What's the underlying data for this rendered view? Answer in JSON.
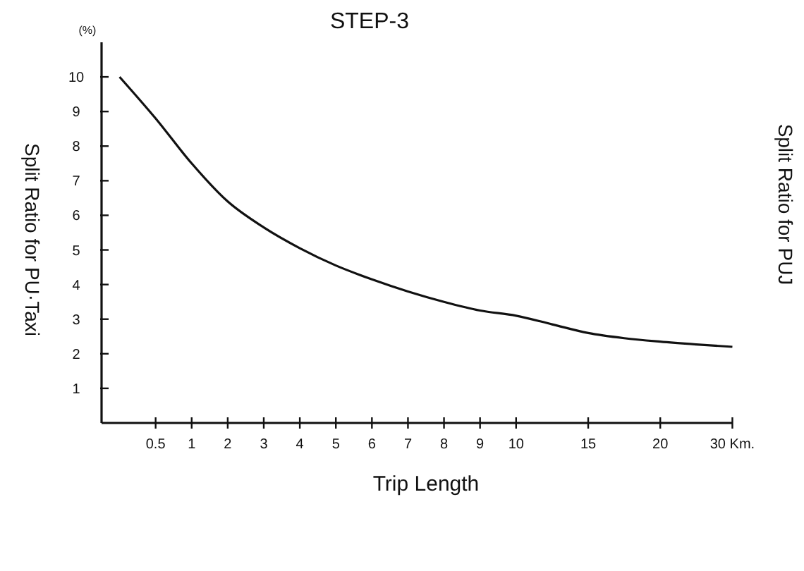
{
  "chart_data": {
    "type": "line",
    "title": "STEP-3",
    "xlabel": "Trip Length",
    "ylabel": "Split Ratio for PU·Taxi",
    "y2label": "Split Ratio for PUJ",
    "annotations": [
      "(%)"
    ],
    "categories": [
      null,
      "0.5",
      "1",
      "2",
      "3",
      "4",
      "5",
      "6",
      "7",
      "8",
      "9",
      "10",
      null,
      "15",
      null,
      "20",
      null,
      "30 Km."
    ],
    "series": [
      {
        "color": "#111111",
        "values": [
          10,
          8.8,
          7.5,
          6.4,
          5.65,
          5.05,
          4.55,
          4.15,
          3.8,
          3.5,
          3.25,
          3.1,
          2.85,
          2.6,
          2.45,
          2.35,
          2.27,
          2.2
        ]
      }
    ],
    "ylim": [
      0,
      11
    ],
    "yticks": [
      1,
      2,
      3,
      4,
      5,
      6,
      7,
      8,
      9,
      10
    ],
    "grid": false,
    "marker": "none",
    "line_style": "solid"
  }
}
